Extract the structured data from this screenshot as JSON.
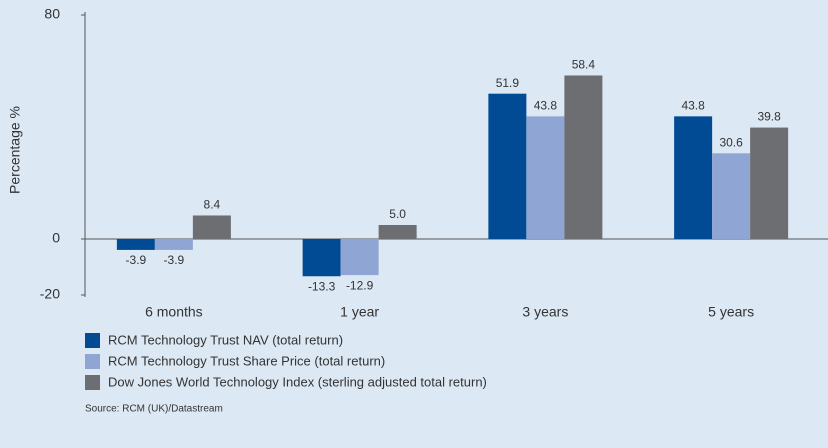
{
  "chart_data": {
    "type": "bar",
    "y_label": "Percentage %",
    "categories": [
      "6 months",
      "1 year",
      "3 years",
      "5 years"
    ],
    "series": [
      {
        "name": "RCM Technology Trust NAV (total return)",
        "color": "#004b93",
        "values": [
          -3.9,
          -13.3,
          51.9,
          43.8
        ],
        "value_labels": [
          "-3.9",
          "-13.3",
          "51.9",
          "43.8"
        ]
      },
      {
        "name": "RCM Technology Trust Share Price (total return)",
        "color": "#8fa5d3",
        "values": [
          -3.9,
          -12.9,
          43.8,
          30.6
        ],
        "value_labels": [
          "-3.9",
          "-12.9",
          "43.8",
          "30.6"
        ]
      },
      {
        "name": "Dow Jones World Technology Index (sterling adjusted total return)",
        "color": "#6d6e71",
        "values": [
          8.4,
          5.0,
          58.4,
          39.8
        ],
        "value_labels": [
          "8.4",
          "5.0",
          "58.4",
          "39.8"
        ]
      }
    ],
    "ylim": [
      -20,
      80
    ],
    "yticks": [
      -20,
      0,
      80
    ],
    "source": "Source: RCM (UK)/Datastream"
  }
}
